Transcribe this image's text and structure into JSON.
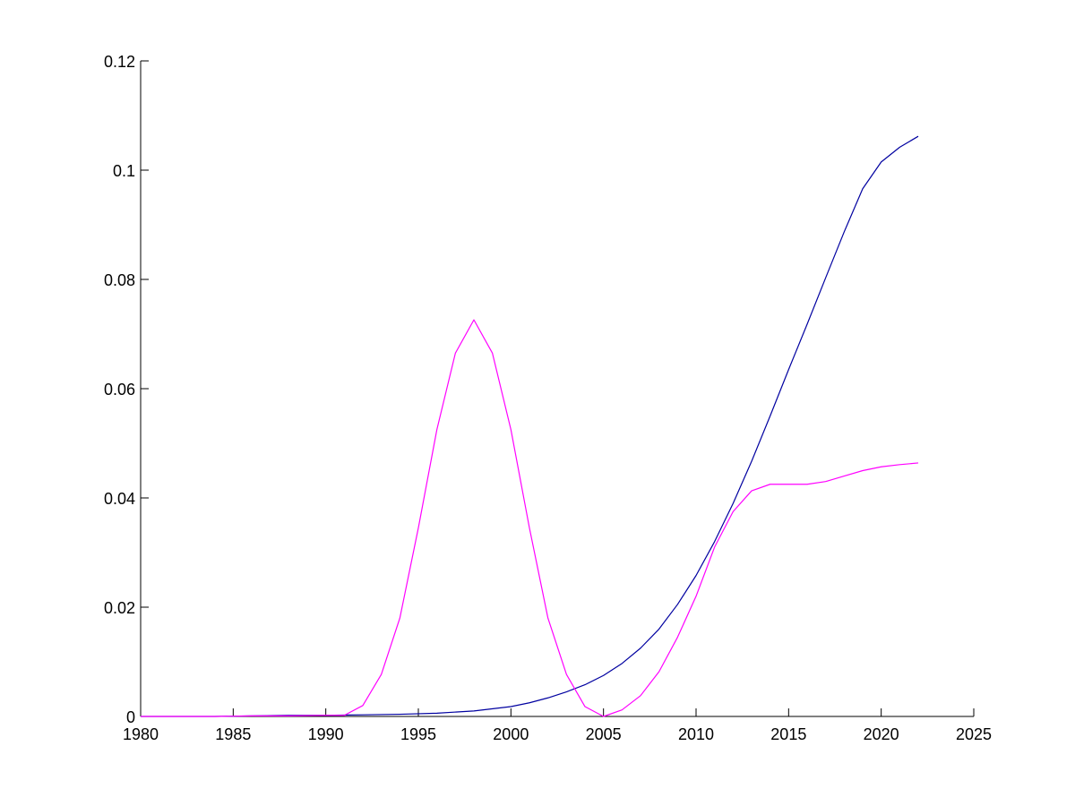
{
  "chart_data": {
    "type": "line",
    "title": "",
    "xlabel": "",
    "ylabel": "",
    "xlim": [
      1980,
      2025
    ],
    "ylim": [
      0,
      0.12
    ],
    "grid": false,
    "xticks": [
      1980,
      1985,
      1990,
      1995,
      2000,
      2005,
      2010,
      2015,
      2020,
      2025
    ],
    "xtick_labels": [
      "1980",
      "1985",
      "1990",
      "1995",
      "2000",
      "2005",
      "2010",
      "2015",
      "2020",
      "2025"
    ],
    "yticks": [
      0,
      0.02,
      0.04,
      0.06,
      0.08,
      0.1,
      0.12
    ],
    "ytick_labels": [
      "0",
      "0.02",
      "0.04",
      "0.06",
      "0.08",
      "0.1",
      "0.12"
    ],
    "series": [
      {
        "color": "#0000a0",
        "x": [
          1980,
          1982,
          1984,
          1986,
          1988,
          1990,
          1992,
          1994,
          1996,
          1998,
          2000,
          2001,
          2002,
          2003,
          2004,
          2005,
          2006,
          2007,
          2008,
          2009,
          2010,
          2011,
          2012,
          2013,
          2014,
          2015,
          2016,
          2017,
          2018,
          2019,
          2020,
          2021,
          2022
        ],
        "values": [
          0,
          0,
          0,
          0.0001,
          0.0002,
          0.0002,
          0.0003,
          0.0004,
          0.0006,
          0.001,
          0.0018,
          0.0025,
          0.0034,
          0.0045,
          0.0058,
          0.0075,
          0.0097,
          0.0125,
          0.016,
          0.0205,
          0.0258,
          0.032,
          0.039,
          0.0467,
          0.055,
          0.0635,
          0.0718,
          0.0803,
          0.0887,
          0.0966,
          0.1015,
          0.1042,
          0.1062
        ]
      },
      {
        "color": "#ff00ff",
        "x": [
          1980,
          1982,
          1984,
          1986,
          1988,
          1990,
          1991,
          1992,
          1993,
          1994,
          1995,
          1996,
          1997,
          1998,
          1999,
          2000,
          2001,
          2002,
          2003,
          2004,
          2005,
          2006,
          2007,
          2008,
          2009,
          2010,
          2011,
          2012,
          2013,
          2014,
          2015,
          2016,
          2017,
          2018,
          2019,
          2020,
          2021,
          2022
        ],
        "values": [
          0,
          0,
          0,
          0.0001,
          0.0001,
          0.0002,
          0.0002,
          0.002,
          0.0077,
          0.018,
          0.0345,
          0.0525,
          0.0665,
          0.0726,
          0.0665,
          0.0525,
          0.0345,
          0.018,
          0.0077,
          0.0018,
          0,
          0.0012,
          0.0038,
          0.0082,
          0.0145,
          0.022,
          0.031,
          0.0375,
          0.0413,
          0.0425,
          0.0425,
          0.0425,
          0.043,
          0.044,
          0.045,
          0.0457,
          0.0461,
          0.0464
        ]
      }
    ]
  }
}
